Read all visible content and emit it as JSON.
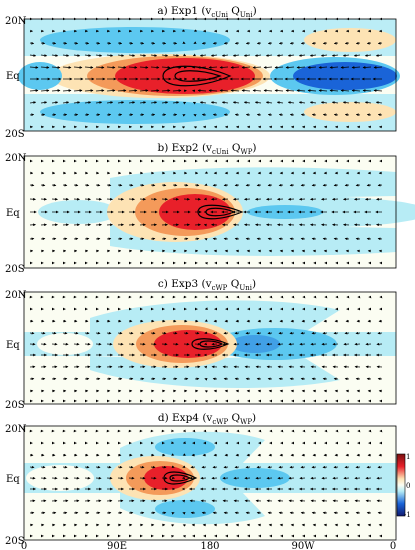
{
  "panels": [
    {
      "id": "a",
      "title_prefix": "a) Exp1 (v",
      "sub1": "cUni",
      "mid": " Q",
      "sub2": "Uni",
      "suffix": ")"
    },
    {
      "id": "b",
      "title_prefix": "b) Exp2 (v",
      "sub1": "cUni",
      "mid": " Q",
      "sub2": "WP",
      "suffix": ")"
    },
    {
      "id": "c",
      "title_prefix": "c) Exp3 (v",
      "sub1": "cWP",
      "mid": " Q",
      "sub2": "Uni",
      "suffix": ")"
    },
    {
      "id": "d",
      "title_prefix": "d) Exp4 (v",
      "sub1": "cWP",
      "mid": " Q",
      "sub2": "WP",
      "suffix": ")"
    }
  ],
  "y_ticks": [
    "20N",
    "Eq",
    "20S"
  ],
  "x_ticks": [
    "0",
    "90E",
    "180",
    "90W",
    "0"
  ],
  "colorbar": {
    "ticks": [
      "1",
      "0",
      "-1"
    ]
  },
  "colors": {
    "strong_positive": "#e8202a",
    "positive": "#f49a5a",
    "weak_positive": "#fde3b4",
    "weak_negative": "#b7ecf5",
    "negative": "#5cc8f0",
    "strong_negative": "#1a64d8",
    "neutral": "#fbfdf2"
  }
}
